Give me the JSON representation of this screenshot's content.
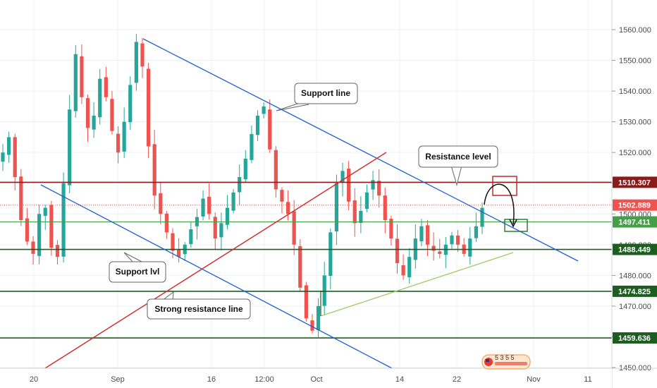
{
  "chart_data": {
    "type": "candlestick",
    "title": "",
    "xlabel": "",
    "ylabel": "",
    "ylim": [
      1449,
      1567
    ],
    "price_ticks": [
      1450,
      1460,
      1470,
      1480,
      1490,
      1500,
      1510,
      1520,
      1530,
      1540,
      1550,
      1560
    ],
    "price_tick_labels": [
      "1450.000",
      "1460.000",
      "1470.000",
      "1480.000",
      "1490.000",
      "1500.000",
      "1510.000",
      "1520.000",
      "1530.000",
      "1540.000",
      "1550.000",
      "1560.000"
    ],
    "time_labels": [
      "20",
      "Sep",
      "16",
      "12:00",
      "Oct",
      "14",
      "22",
      "Nov",
      "11"
    ],
    "horizontal_levels": [
      {
        "label": "1510.307",
        "value": 1510.307,
        "color": "#8b1a1a"
      },
      {
        "label": "1502.889",
        "value": 1502.889,
        "color": "#ef5350"
      },
      {
        "label": "1497.411",
        "value": 1497.411,
        "color": "#43a047"
      },
      {
        "label": "1488.449",
        "value": 1488.449,
        "color": "#1b5e20"
      },
      {
        "label": "1474.825",
        "value": 1474.825,
        "color": "#1b5e20"
      },
      {
        "label": "1459.636",
        "value": 1459.636,
        "color": "#1b5e20"
      }
    ],
    "annotations": [
      "Support line",
      "Resistance level",
      "Support lvl",
      "Strong resistance line"
    ],
    "series": [
      {
        "values": [
          1520,
          1525,
          1512,
          1498,
          1491,
          1487,
          1500,
          1502,
          1489,
          1486,
          1510,
          1534,
          1552,
          1538,
          1528,
          1532,
          1544,
          1538,
          1527,
          1520,
          1530,
          1542,
          1556,
          1548,
          1522,
          1506,
          1500,
          1494,
          1488,
          1486,
          1490,
          1495,
          1499,
          1505,
          1500,
          1492,
          1497,
          1502,
          1507,
          1512,
          1518,
          1526,
          1532,
          1535,
          1521,
          1508,
          1504,
          1500,
          1490,
          1476,
          1466,
          1462,
          1470,
          1480,
          1494,
          1510,
          1514,
          1504,
          1497,
          1501,
          1507,
          1511,
          1506,
          1498,
          1492,
          1484,
          1480,
          1486,
          1492,
          1496,
          1490,
          1488,
          1487,
          1490,
          1493,
          1490,
          1487,
          1492,
          1496,
          1502
        ]
      }
    ]
  },
  "colors": {
    "resistance_level": "#8b1a1a",
    "trend_line": "#1e5fd6",
    "strong_resistance": "#d32f2f",
    "support_green": "#1b5e20",
    "light_green": "#43a047",
    "candle_up": "#26a69a",
    "candle_down": "#ef5350"
  },
  "logo_icon": "flag-logo-icon",
  "logo_text": "5 3 5 5"
}
